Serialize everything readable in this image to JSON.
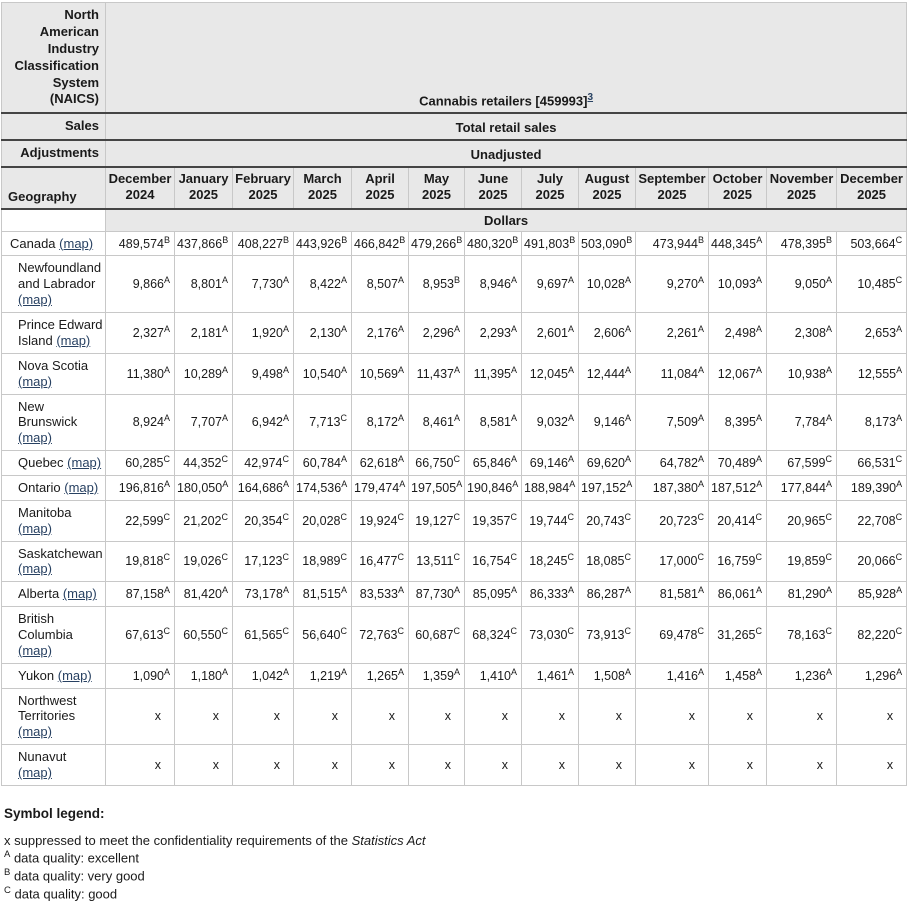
{
  "colors": {
    "header_bg": "#e8e8e8",
    "link": "#284162",
    "border_dark": "#444444",
    "border_light": "#c8c8c8",
    "text": "#1a1a1a"
  },
  "header": {
    "naics_label": "North American Industry Classification System (NAICS)",
    "sales_label": "Sales",
    "adjustments_label": "Adjustments",
    "geography_label": "Geography",
    "map_label": "(map)"
  },
  "chart_data": {
    "type": "table",
    "title": "Cannabis retailers [459993]",
    "title_footnote": "3",
    "sales": "Total retail sales",
    "adjustments": "Unadjusted",
    "unit": "Dollars",
    "suppressed_symbol": "x",
    "categories": [
      "December 2024",
      "January 2025",
      "February 2025",
      "March 2025",
      "April 2025",
      "May 2025",
      "June 2025",
      "July 2025",
      "August 2025",
      "September 2025",
      "October 2025",
      "November 2025",
      "December 2025"
    ],
    "rows": [
      {
        "name": "Canada",
        "indent": false,
        "values": [
          "489,574",
          "437,866",
          "408,227",
          "443,926",
          "466,842",
          "479,266",
          "480,320",
          "491,803",
          "503,090",
          "473,944",
          "448,345",
          "478,395",
          "503,664"
        ],
        "quality": [
          "B",
          "B",
          "B",
          "B",
          "B",
          "B",
          "B",
          "B",
          "B",
          "B",
          "A",
          "B",
          "C"
        ]
      },
      {
        "name": "Newfoundland and Labrador",
        "indent": true,
        "values": [
          "9,866",
          "8,801",
          "7,730",
          "8,422",
          "8,507",
          "8,953",
          "8,946",
          "9,697",
          "10,028",
          "9,270",
          "10,093",
          "9,050",
          "10,485"
        ],
        "quality": [
          "A",
          "A",
          "A",
          "A",
          "A",
          "B",
          "A",
          "A",
          "A",
          "A",
          "A",
          "A",
          "C"
        ]
      },
      {
        "name": "Prince Edward Island",
        "indent": true,
        "values": [
          "2,327",
          "2,181",
          "1,920",
          "2,130",
          "2,176",
          "2,296",
          "2,293",
          "2,601",
          "2,606",
          "2,261",
          "2,498",
          "2,308",
          "2,653"
        ],
        "quality": [
          "A",
          "A",
          "A",
          "A",
          "A",
          "A",
          "A",
          "A",
          "A",
          "A",
          "A",
          "A",
          "A"
        ]
      },
      {
        "name": "Nova Scotia",
        "indent": true,
        "values": [
          "11,380",
          "10,289",
          "9,498",
          "10,540",
          "10,569",
          "11,437",
          "11,395",
          "12,045",
          "12,444",
          "11,084",
          "12,067",
          "10,938",
          "12,555"
        ],
        "quality": [
          "A",
          "A",
          "A",
          "A",
          "A",
          "A",
          "A",
          "A",
          "A",
          "A",
          "A",
          "A",
          "A"
        ]
      },
      {
        "name": "New Brunswick",
        "indent": true,
        "values": [
          "8,924",
          "7,707",
          "6,942",
          "7,713",
          "8,172",
          "8,461",
          "8,581",
          "9,032",
          "9,146",
          "7,509",
          "8,395",
          "7,784",
          "8,173"
        ],
        "quality": [
          "A",
          "A",
          "A",
          "C",
          "A",
          "A",
          "A",
          "A",
          "A",
          "A",
          "A",
          "A",
          "A"
        ]
      },
      {
        "name": "Quebec",
        "indent": true,
        "values": [
          "60,285",
          "44,352",
          "42,974",
          "60,784",
          "62,618",
          "66,750",
          "65,846",
          "69,146",
          "69,620",
          "64,782",
          "70,489",
          "67,599",
          "66,531"
        ],
        "quality": [
          "C",
          "C",
          "C",
          "A",
          "A",
          "C",
          "A",
          "A",
          "A",
          "A",
          "A",
          "C",
          "C"
        ]
      },
      {
        "name": "Ontario",
        "indent": true,
        "values": [
          "196,816",
          "180,050",
          "164,686",
          "174,536",
          "179,474",
          "197,505",
          "190,846",
          "188,984",
          "197,152",
          "187,380",
          "187,512",
          "177,844",
          "189,390"
        ],
        "quality": [
          "A",
          "A",
          "A",
          "A",
          "A",
          "A",
          "A",
          "A",
          "A",
          "A",
          "A",
          "A",
          "A"
        ]
      },
      {
        "name": "Manitoba",
        "indent": true,
        "values": [
          "22,599",
          "21,202",
          "20,354",
          "20,028",
          "19,924",
          "19,127",
          "19,357",
          "19,744",
          "20,743",
          "20,723",
          "20,414",
          "20,965",
          "22,708"
        ],
        "quality": [
          "C",
          "C",
          "C",
          "C",
          "C",
          "C",
          "C",
          "C",
          "C",
          "C",
          "C",
          "C",
          "C"
        ]
      },
      {
        "name": "Saskatchewan",
        "indent": true,
        "values": [
          "19,818",
          "19,026",
          "17,123",
          "18,989",
          "16,477",
          "13,511",
          "16,754",
          "18,245",
          "18,085",
          "17,000",
          "16,759",
          "19,859",
          "20,066"
        ],
        "quality": [
          "C",
          "C",
          "C",
          "C",
          "C",
          "C",
          "C",
          "C",
          "C",
          "C",
          "C",
          "C",
          "C"
        ]
      },
      {
        "name": "Alberta",
        "indent": true,
        "values": [
          "87,158",
          "81,420",
          "73,178",
          "81,515",
          "83,533",
          "87,730",
          "85,095",
          "86,333",
          "86,287",
          "81,581",
          "86,061",
          "81,290",
          "85,928"
        ],
        "quality": [
          "A",
          "A",
          "A",
          "A",
          "A",
          "A",
          "A",
          "A",
          "A",
          "A",
          "A",
          "A",
          "A"
        ]
      },
      {
        "name": "British Columbia",
        "indent": true,
        "values": [
          "67,613",
          "60,550",
          "61,565",
          "56,640",
          "72,763",
          "60,687",
          "68,324",
          "73,030",
          "73,913",
          "69,478",
          "31,265",
          "78,163",
          "82,220"
        ],
        "quality": [
          "C",
          "C",
          "C",
          "C",
          "C",
          "C",
          "C",
          "C",
          "C",
          "C",
          "C",
          "C",
          "C"
        ]
      },
      {
        "name": "Yukon",
        "indent": true,
        "values": [
          "1,090",
          "1,180",
          "1,042",
          "1,219",
          "1,265",
          "1,359",
          "1,410",
          "1,461",
          "1,508",
          "1,416",
          "1,458",
          "1,236",
          "1,296"
        ],
        "quality": [
          "A",
          "A",
          "A",
          "A",
          "A",
          "A",
          "A",
          "A",
          "A",
          "A",
          "A",
          "A",
          "A"
        ]
      },
      {
        "name": "Northwest Territories",
        "indent": true,
        "values": [
          "x",
          "x",
          "x",
          "x",
          "x",
          "x",
          "x",
          "x",
          "x",
          "x",
          "x",
          "x",
          "x"
        ],
        "quality": [
          "",
          "",
          "",
          "",
          "",
          "",
          "",
          "",
          "",
          "",
          "",
          "",
          ""
        ]
      },
      {
        "name": "Nunavut",
        "indent": true,
        "values": [
          "x",
          "x",
          "x",
          "x",
          "x",
          "x",
          "x",
          "x",
          "x",
          "x",
          "x",
          "x",
          "x"
        ],
        "quality": [
          "",
          "",
          "",
          "",
          "",
          "",
          "",
          "",
          "",
          "",
          "",
          "",
          ""
        ]
      }
    ]
  },
  "legend": {
    "title": "Symbol legend:",
    "items": [
      {
        "symbol": "x",
        "superscript": false,
        "text": "suppressed to meet the confidentiality requirements of the",
        "italic": "Statistics Act"
      },
      {
        "symbol": "A",
        "superscript": true,
        "text": "data quality: excellent",
        "italic": ""
      },
      {
        "symbol": "B",
        "superscript": true,
        "text": "data quality: very good",
        "italic": ""
      },
      {
        "symbol": "C",
        "superscript": true,
        "text": "data quality: good",
        "italic": ""
      }
    ]
  }
}
